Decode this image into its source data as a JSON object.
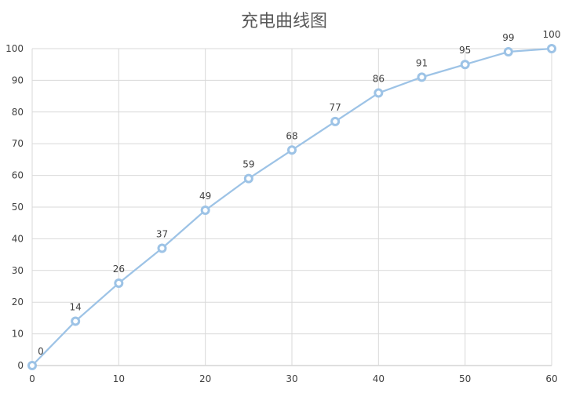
{
  "chart_data": {
    "type": "line",
    "title": "充电曲线图",
    "xlabel": "",
    "ylabel": "",
    "x": [
      0,
      5,
      10,
      15,
      20,
      25,
      30,
      35,
      40,
      45,
      50,
      55,
      60
    ],
    "series": [
      {
        "values": [
          0,
          14,
          26,
          37,
          49,
          59,
          68,
          77,
          86,
          91,
          95,
          99,
          100
        ]
      }
    ],
    "xlim": [
      0,
      60
    ],
    "ylim": [
      0,
      100
    ],
    "x_ticks": [
      0,
      10,
      20,
      30,
      40,
      50,
      60
    ],
    "y_ticks": [
      0,
      10,
      20,
      30,
      40,
      50,
      60,
      70,
      80,
      90,
      100
    ],
    "grid": true,
    "legend": "none",
    "data_labels": true,
    "colors": {
      "line": "#9dc3e6",
      "marker_fill": "#ffffff",
      "grid": "#d9d9d9"
    }
  }
}
